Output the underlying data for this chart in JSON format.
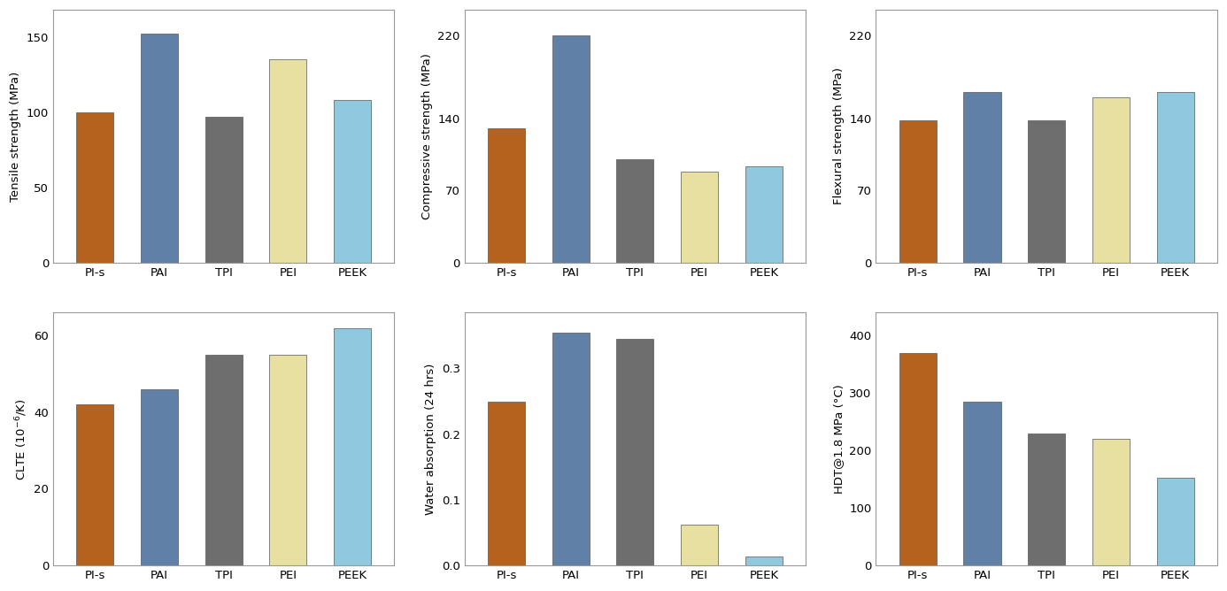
{
  "categories": [
    "PI-s",
    "PAI",
    "TPI",
    "PEI",
    "PEEK"
  ],
  "bar_colors": [
    "#b5621e",
    "#6080a8",
    "#6e6e6e",
    "#e8e0a0",
    "#90c8e0"
  ],
  "charts": [
    {
      "ylabel": "Tensile strength (MPa)",
      "values": [
        100,
        152,
        97,
        135,
        108
      ],
      "ylim": [
        0,
        168
      ],
      "yticks": [
        0,
        50,
        100,
        150
      ]
    },
    {
      "ylabel": "Compressive strength (MPa)",
      "values": [
        130,
        220,
        100,
        88,
        93
      ],
      "ylim": [
        0,
        245
      ],
      "yticks": [
        0,
        70,
        140,
        220
      ]
    },
    {
      "ylabel": "Flexural strength (MPa)",
      "values": [
        138,
        165,
        138,
        160,
        165
      ],
      "ylim": [
        0,
        245
      ],
      "yticks": [
        0,
        70,
        140,
        220
      ]
    },
    {
      "ylabel": "CLTE (10$^{-6}$/K)",
      "values": [
        42,
        46,
        55,
        55,
        62
      ],
      "ylim": [
        0,
        66
      ],
      "yticks": [
        0,
        20,
        40,
        60
      ]
    },
    {
      "ylabel": "Water absorption (24 hrs)",
      "values": [
        0.25,
        0.355,
        0.345,
        0.062,
        0.013
      ],
      "ylim": [
        0,
        0.385
      ],
      "yticks": [
        0,
        0.1,
        0.2,
        0.3
      ]
    },
    {
      "ylabel": "HDT@1.8 MPa (°C)",
      "values": [
        370,
        285,
        230,
        220,
        152
      ],
      "ylim": [
        0,
        440
      ],
      "yticks": [
        0,
        100,
        200,
        300,
        400
      ]
    }
  ],
  "figure_bg": "#ffffff",
  "axes_bg": "#ffffff",
  "bar_width": 0.58,
  "spine_color": "#999999",
  "tick_fontsize": 9.5,
  "label_fontsize": 9.5
}
